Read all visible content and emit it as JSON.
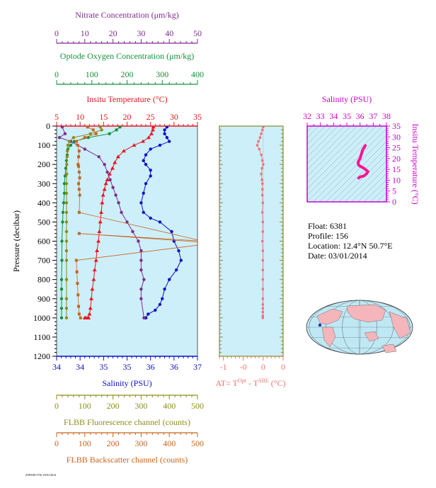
{
  "chart_data": [
    {
      "type": "line",
      "title": "Float 6381 profile",
      "axes": {
        "nitrate": {
          "label": "Nitrate Concentration (μm/kg)",
          "ticks": [
            0,
            10,
            20,
            30,
            40,
            50
          ],
          "range": [
            0,
            50
          ],
          "color": "#7f2b8f"
        },
        "oxygen": {
          "label": "Optode Oxygen Concentration (μm/kg)",
          "ticks": [
            0,
            100,
            200,
            300,
            400
          ],
          "range": [
            0,
            400
          ],
          "color": "#14903a"
        },
        "temperature": {
          "label": "Insitu Temperature (°C)",
          "ticks": [
            5,
            10,
            15,
            20,
            25,
            30,
            35
          ],
          "range": [
            5,
            35
          ],
          "color": "#e8141e"
        },
        "salinity": {
          "label": "Salinity (PSU)",
          "ticks": [
            34,
            35,
            36,
            37
          ],
          "tick_labels": [
            "34",
            "34",
            "35",
            "35",
            "36",
            "36",
            "37"
          ],
          "range": [
            34,
            37
          ],
          "color": "#1010c8"
        },
        "pressure": {
          "label": "Pressure (decibar)",
          "ticks": [
            0,
            100,
            200,
            300,
            400,
            500,
            600,
            700,
            800,
            900,
            1000,
            1100,
            1200
          ],
          "range": [
            0,
            1200
          ]
        },
        "fluorescence": {
          "label": "FLBB Fluorescence channel (counts)",
          "ticks": [
            0,
            100,
            200,
            300,
            400,
            500
          ],
          "range": [
            0,
            500
          ],
          "color": "#8c8c1e"
        },
        "backscatter": {
          "label": "FLBB Backscatter channel (counts)",
          "ticks": [
            0,
            100,
            200,
            300,
            400,
            500
          ],
          "range": [
            0,
            500
          ],
          "color": "#c8641e"
        }
      },
      "series": [
        {
          "name": "Temperature",
          "axis": "temperature",
          "color": "#e8141e",
          "x": [
            25.6,
            25.5,
            25.2,
            24.6,
            23.4,
            21.5,
            19.3,
            18.1,
            17.4,
            16.9,
            16.3,
            15.8,
            15.5,
            15.2,
            14.9,
            14.7,
            14.5,
            14.3,
            14.1,
            13.9,
            13.6,
            13.4,
            13.1,
            12.9,
            12.6,
            12.4,
            12.2,
            12.0,
            11.8,
            11.6,
            11.2,
            11.0
          ],
          "y": [
            5,
            20,
            40,
            60,
            80,
            100,
            130,
            160,
            190,
            220,
            250,
            280,
            300,
            330,
            360,
            400,
            450,
            500,
            550,
            600,
            650,
            700,
            750,
            800,
            850,
            900,
            950,
            980,
            1000,
            1000,
            1000,
            1000
          ]
        },
        {
          "name": "Salinity",
          "axis": "salinity",
          "color": "#1010c8",
          "x": [
            36.35,
            36.3,
            36.3,
            36.35,
            36.4,
            36.2,
            36.0,
            35.9,
            35.85,
            35.9,
            36.0,
            36.0,
            35.9,
            35.85,
            35.8,
            35.85,
            36.0,
            36.2,
            36.45,
            36.5,
            36.6,
            36.65,
            36.55,
            36.4,
            36.3,
            36.25,
            36.2,
            36.1,
            35.95,
            35.9,
            35.9
          ],
          "y": [
            5,
            20,
            40,
            60,
            80,
            100,
            120,
            150,
            180,
            200,
            230,
            260,
            300,
            350,
            400,
            450,
            480,
            500,
            550,
            600,
            650,
            700,
            750,
            800,
            850,
            900,
            930,
            960,
            980,
            1000,
            1000
          ]
        },
        {
          "name": "Nitrate",
          "axis": "nitrate",
          "color": "#7f2b8f",
          "x": [
            2,
            3,
            1,
            5,
            10,
            15,
            17,
            18,
            19,
            20,
            21,
            22,
            23,
            25,
            27,
            29,
            30,
            30,
            30,
            31,
            30,
            30,
            31
          ],
          "y": [
            5,
            40,
            60,
            80,
            120,
            160,
            200,
            240,
            280,
            320,
            360,
            400,
            450,
            500,
            550,
            600,
            650,
            700,
            750,
            800,
            850,
            900,
            1000
          ]
        },
        {
          "name": "Oxygen",
          "axis": "oxygen",
          "color": "#14903a",
          "x": [
            180,
            170,
            150,
            90,
            50,
            40,
            32,
            30,
            28,
            26,
            24,
            22,
            22,
            20,
            18,
            17,
            15,
            15,
            14,
            14,
            14,
            14,
            14
          ],
          "y": [
            5,
            20,
            40,
            60,
            80,
            100,
            120,
            150,
            180,
            220,
            260,
            300,
            350,
            400,
            450,
            500,
            600,
            700,
            800,
            850,
            900,
            950,
            1000
          ]
        },
        {
          "name": "Fluorescence",
          "axis": "fluorescence",
          "color": "#8c8c1e",
          "x": [
            155,
            160,
            120,
            60,
            45,
            40,
            38,
            37,
            36,
            36,
            35,
            35,
            35,
            35,
            35,
            35,
            35,
            35,
            35,
            35,
            35,
            35,
            35
          ],
          "y": [
            5,
            20,
            40,
            60,
            80,
            100,
            130,
            160,
            200,
            250,
            300,
            350,
            400,
            450,
            500,
            550,
            600,
            650,
            700,
            800,
            900,
            950,
            1000
          ]
        },
        {
          "name": "Backscatter",
          "axis": "backscatter",
          "color": "#c8641e",
          "x": [
            110,
            130,
            140,
            100,
            70,
            75,
            80,
            78,
            76,
            78,
            80,
            82,
            78,
            80,
            82,
            80,
            520,
            80,
            560,
            70,
            72,
            74,
            76,
            78,
            80,
            85
          ],
          "y": [
            5,
            20,
            40,
            60,
            80,
            100,
            130,
            160,
            200,
            210,
            240,
            270,
            300,
            330,
            360,
            450,
            600,
            560,
            610,
            700,
            760,
            820,
            880,
            940,
            980,
            1000
          ]
        }
      ]
    },
    {
      "type": "scatter",
      "title": "",
      "xlabel": "AT= TOpt - TSBE (°C)",
      "xlabel_parts": {
        "prefix": "AT= T",
        "sup1": "Opt",
        "mid": " - T",
        "sup2": "SBE",
        "suffix": " (°C)"
      },
      "xticks": [
        -1,
        -0.5,
        0,
        0.5
      ],
      "xtick_labels": [
        "-1",
        "-0",
        "0",
        "0"
      ],
      "xlim": [
        -1.1,
        0.5
      ],
      "color": "#f07070",
      "x": [
        0,
        -0.02,
        -0.05,
        -0.08,
        -0.12,
        -0.15,
        -0.1,
        -0.05,
        -0.02,
        0,
        -0.03,
        -0.05,
        -0.03,
        -0.02,
        -0.02,
        -0.02,
        -0.01,
        -0.02,
        -0.01,
        -0.01,
        -0.02,
        -0.01,
        -0.01,
        -0.01,
        -0.01,
        -0.01,
        -0.01,
        -0.01,
        -0.01,
        -0.01,
        -0.01,
        -0.01
      ],
      "y": [
        5,
        20,
        40,
        60,
        80,
        100,
        120,
        150,
        180,
        200,
        220,
        250,
        280,
        300,
        330,
        360,
        400,
        450,
        500,
        550,
        600,
        650,
        700,
        750,
        800,
        850,
        900,
        930,
        950,
        970,
        990,
        1000
      ]
    },
    {
      "type": "line",
      "title": "Salinity (PSU)",
      "xlabel": "Salinity (PSU)",
      "ylabel": "Insitu Temperature (°C)",
      "xticks": [
        32,
        33,
        34,
        35,
        36,
        37,
        38
      ],
      "yticks": [
        0,
        5,
        10,
        15,
        20,
        25,
        30,
        35
      ],
      "xlim": [
        32,
        38
      ],
      "ylim": [
        0,
        35
      ],
      "color": "#ff1493",
      "x": [
        36.4,
        36.35,
        36.3,
        36.2,
        36.1,
        36.0,
        35.9,
        35.85,
        35.9,
        36.0,
        36.3,
        36.6,
        36.5,
        36.3,
        36.0,
        35.9
      ],
      "y": [
        26,
        25.5,
        25,
        24,
        22,
        20,
        19,
        18,
        17,
        16.5,
        15.5,
        14,
        13,
        12,
        11.5,
        11
      ]
    }
  ],
  "info": {
    "float": "Float:  6381",
    "profile": "Profile:  156",
    "location": "Location:  12.4°N  50.7°E",
    "date": "Date:  03/01/2014"
  },
  "footer_stamp": "ZSF6381/Y56, 03/01/2014"
}
